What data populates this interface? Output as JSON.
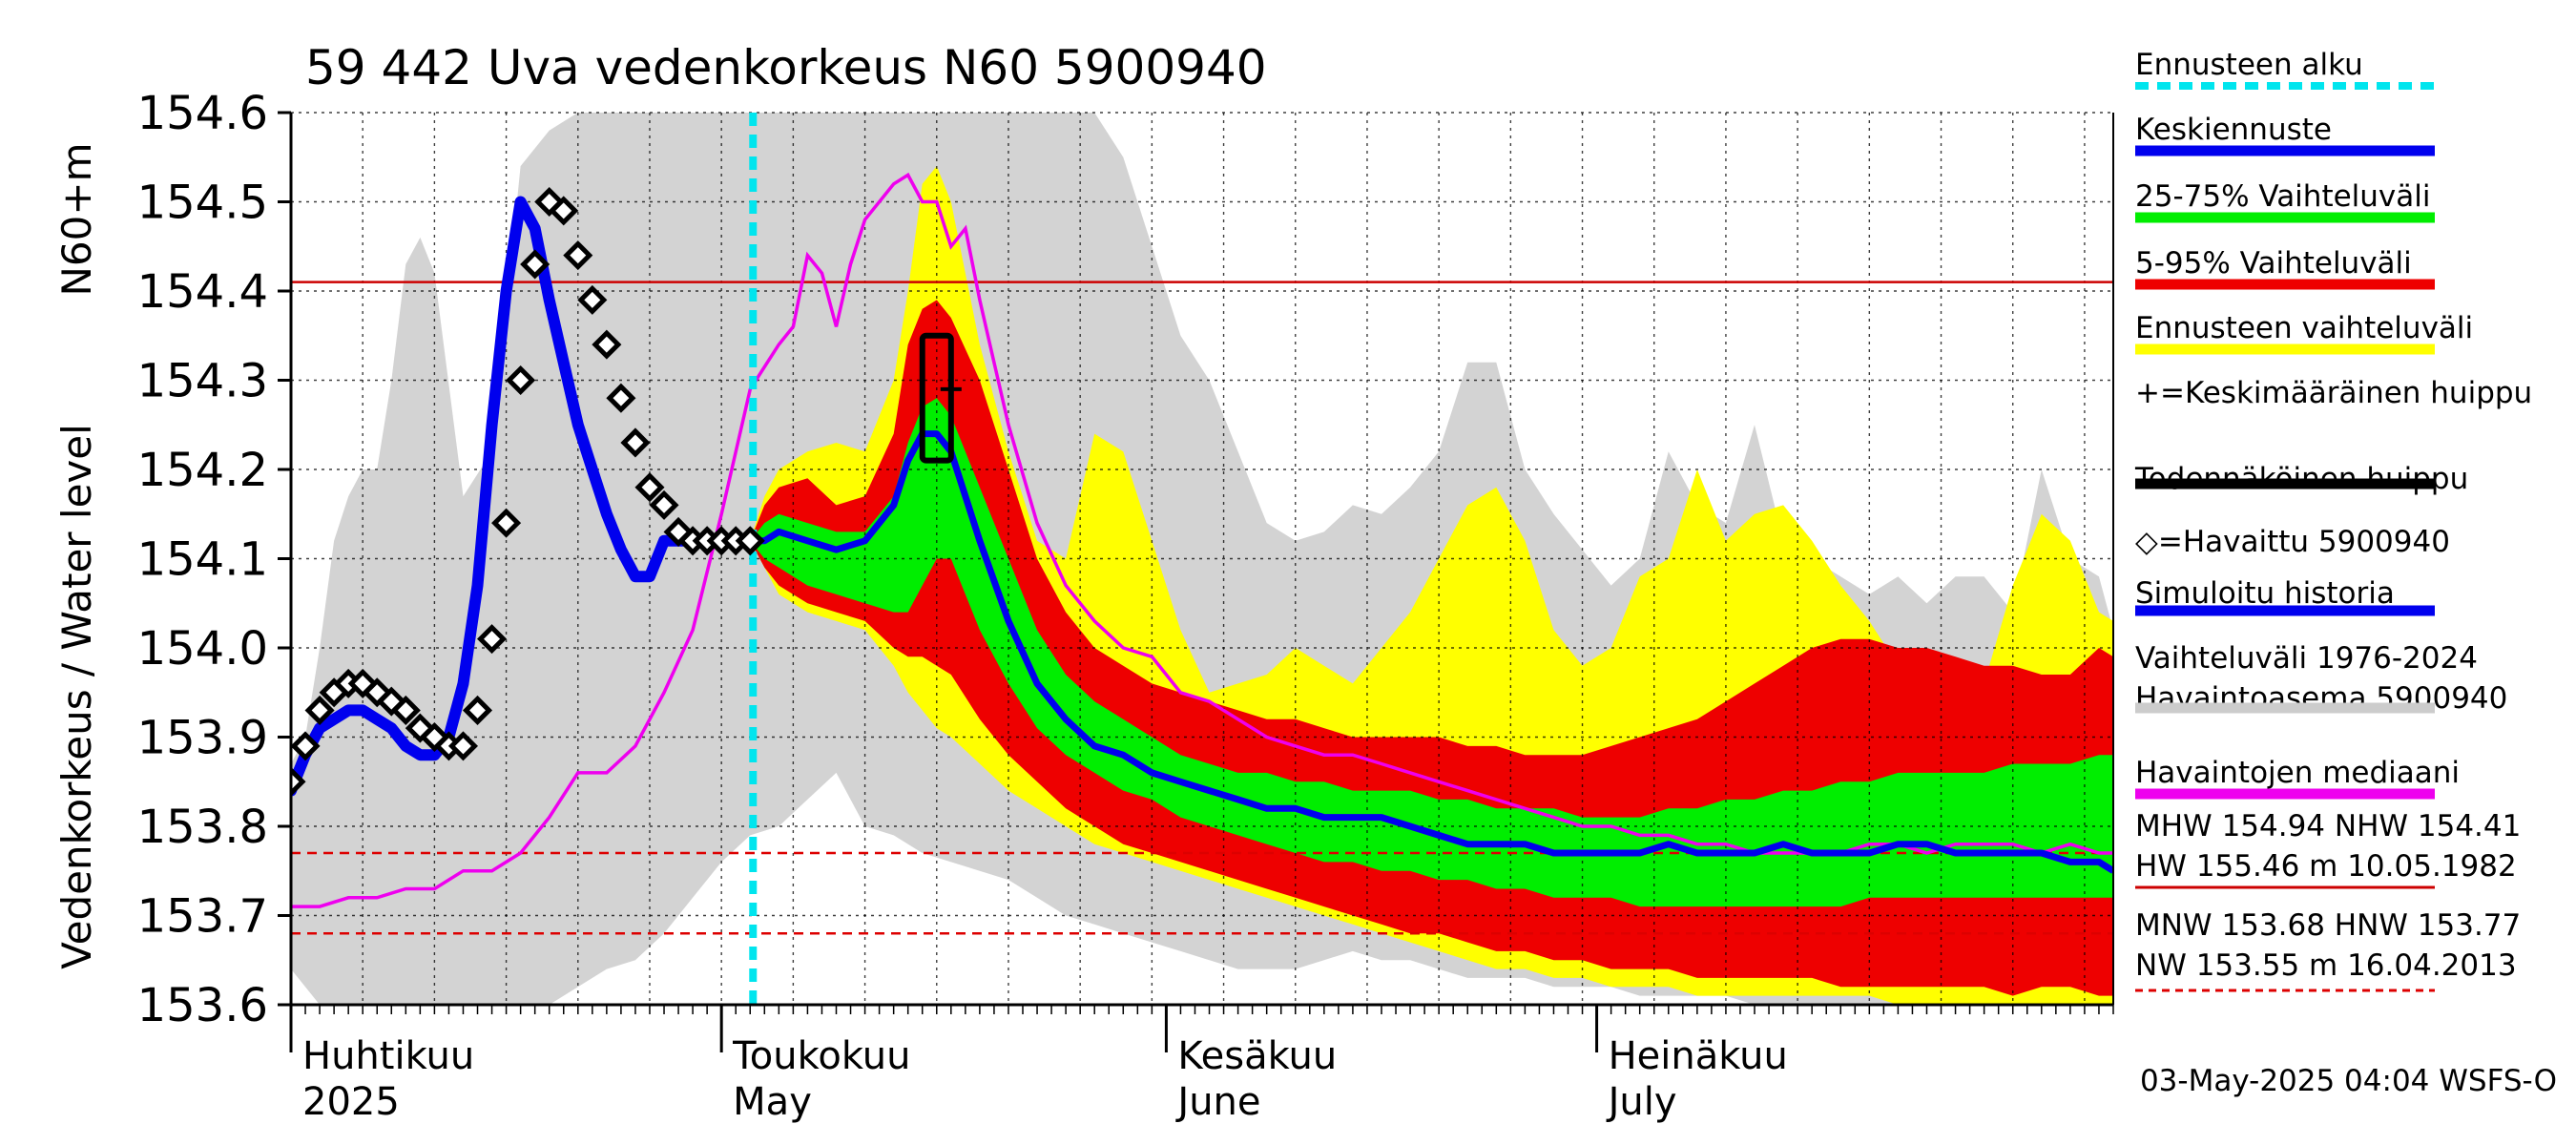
{
  "chart_data": {
    "type": "area",
    "title": "59 442 Uva vedenkorkeus N60 5900940",
    "ylabel_main": "Vedenkorkeus / Water level",
    "ylabel_unit": "N60+m",
    "ylim": [
      153.6,
      154.6
    ],
    "yticks": [
      153.6,
      153.7,
      153.8,
      153.9,
      154.0,
      154.1,
      154.2,
      154.3,
      154.4,
      154.5,
      154.6
    ],
    "xlim_day": [
      0,
      127
    ],
    "month_labels": [
      {
        "day": 0,
        "fi": "Huhtikuu",
        "en": "2025"
      },
      {
        "day": 30,
        "fi": "Toukokuu",
        "en": "May"
      },
      {
        "day": 61,
        "fi": "Kesäkuu",
        "en": "June"
      },
      {
        "day": 91,
        "fi": "Heinäkuu",
        "en": "July"
      }
    ],
    "forecast_start_day": 32.2,
    "hlines": [
      {
        "y": 154.41,
        "color": "#cc0000",
        "style": "solid"
      },
      {
        "y": 153.77,
        "color": "#dd0000",
        "style": "dashed"
      },
      {
        "y": 153.68,
        "color": "#dd0000",
        "style": "dashed"
      }
    ],
    "footer": "03-May-2025 04:04 WSFS-O",
    "legend": [
      {
        "label": "Ennusteen alku",
        "color": "#00e5ee",
        "style": "dashed"
      },
      {
        "label": "Keskiennuste",
        "color": "#0000ee",
        "style": "solid"
      },
      {
        "label": "25-75% Vaihteluväli",
        "color": "#00ee00",
        "style": "solid"
      },
      {
        "label": "5-95% Vaihteluväli",
        "color": "#ee0000",
        "style": "solid"
      },
      {
        "label": "Ennusteen vaihteluväli",
        "color": "#ffff00",
        "style": "solid"
      },
      {
        "label": "+=Keskimääräinen huippu",
        "color": "#000000",
        "style": "none"
      },
      {
        "label": "Todennäköinen huippu",
        "color": "#000000",
        "style": "solid"
      },
      {
        "label": "◇=Havaittu 5900940",
        "color": "#000000",
        "style": "none"
      },
      {
        "label": "Simuloitu historia",
        "color": "#0000ee",
        "style": "solid"
      },
      {
        "label": "Vaihteluväli 1976-2024\n Havaintoasema 5900940",
        "color": "#cccccc",
        "style": "solid"
      },
      {
        "label": "Havaintojen mediaani",
        "color": "#ee00ee",
        "style": "solid"
      },
      {
        "label": "MHW 154.94 NHW 154.41\nHW 155.46 m 10.05.1982",
        "color": "#cc0000",
        "style": "solid"
      },
      {
        "label": "MNW 153.68 HNW 153.77\nNW 153.55 m 16.04.2013",
        "color": "#dd0000",
        "style": "dashed"
      }
    ],
    "historical_range": {
      "x": [
        0,
        1,
        2,
        3,
        4,
        5,
        6,
        7,
        8,
        9,
        10,
        12,
        14,
        16,
        18,
        20,
        22,
        24,
        26,
        28,
        30,
        32,
        34,
        36,
        38,
        40,
        42,
        44,
        46,
        48,
        50,
        52,
        54,
        56,
        58,
        60,
        62,
        64,
        66,
        68,
        70,
        72,
        74,
        76,
        78,
        80,
        82,
        84,
        86,
        88,
        90,
        92,
        94,
        96,
        98,
        100,
        102,
        104,
        106,
        108,
        110,
        112,
        114,
        116,
        118,
        120,
        122,
        124,
        126,
        127
      ],
      "upper": [
        153.87,
        153.9,
        154.0,
        154.12,
        154.17,
        154.2,
        154.2,
        154.3,
        154.43,
        154.46,
        154.42,
        154.17,
        154.22,
        154.54,
        154.58,
        154.6,
        154.6,
        154.6,
        154.6,
        154.6,
        154.6,
        154.6,
        154.6,
        154.6,
        154.6,
        154.6,
        154.6,
        154.6,
        154.6,
        154.6,
        154.6,
        154.6,
        154.6,
        154.6,
        154.55,
        154.45,
        154.35,
        154.3,
        154.22,
        154.14,
        154.12,
        154.13,
        154.16,
        154.15,
        154.18,
        154.22,
        154.32,
        154.32,
        154.2,
        154.15,
        154.11,
        154.07,
        154.1,
        154.22,
        154.16,
        154.14,
        154.25,
        154.12,
        154.1,
        154.08,
        154.06,
        154.08,
        154.05,
        154.08,
        154.08,
        154.04,
        154.2,
        154.1,
        154.08,
        154.02
      ],
      "lower": [
        153.64,
        153.62,
        153.6,
        153.6,
        153.6,
        153.6,
        153.6,
        153.6,
        153.6,
        153.6,
        153.6,
        153.6,
        153.6,
        153.6,
        153.6,
        153.62,
        153.64,
        153.65,
        153.68,
        153.72,
        153.76,
        153.79,
        153.8,
        153.83,
        153.86,
        153.8,
        153.79,
        153.77,
        153.76,
        153.75,
        153.74,
        153.72,
        153.7,
        153.69,
        153.68,
        153.67,
        153.66,
        153.65,
        153.64,
        153.64,
        153.64,
        153.65,
        153.66,
        153.65,
        153.65,
        153.64,
        153.63,
        153.63,
        153.63,
        153.62,
        153.62,
        153.62,
        153.61,
        153.61,
        153.61,
        153.61,
        153.6,
        153.6,
        153.6,
        153.6,
        153.6,
        153.6,
        153.6,
        153.6,
        153.6,
        153.6,
        153.6,
        153.6,
        153.6,
        153.6
      ]
    },
    "forecast_bands": {
      "x": [
        32,
        33,
        34,
        36,
        38,
        40,
        42,
        43,
        44,
        45,
        46,
        48,
        50,
        52,
        54,
        56,
        58,
        60,
        62,
        64,
        66,
        68,
        70,
        72,
        74,
        76,
        78,
        80,
        82,
        84,
        86,
        88,
        90,
        92,
        94,
        96,
        98,
        100,
        102,
        104,
        106,
        108,
        110,
        112,
        114,
        116,
        118,
        120,
        122,
        124,
        126,
        127
      ],
      "yellow_upper": [
        154.12,
        154.17,
        154.2,
        154.22,
        154.23,
        154.22,
        154.3,
        154.4,
        154.52,
        154.54,
        154.5,
        154.34,
        154.22,
        154.12,
        154.1,
        154.24,
        154.22,
        154.12,
        154.02,
        153.95,
        153.96,
        153.97,
        154.0,
        153.98,
        153.96,
        154.0,
        154.04,
        154.1,
        154.16,
        154.18,
        154.12,
        154.02,
        153.98,
        154.0,
        154.08,
        154.1,
        154.2,
        154.12,
        154.15,
        154.16,
        154.12,
        154.07,
        154.03,
        153.98,
        153.95,
        153.98,
        153.96,
        154.07,
        154.15,
        154.12,
        154.04,
        154.03
      ],
      "red_upper": [
        154.12,
        154.16,
        154.18,
        154.19,
        154.16,
        154.17,
        154.24,
        154.34,
        154.38,
        154.39,
        154.37,
        154.3,
        154.2,
        154.1,
        154.04,
        154.0,
        153.98,
        153.96,
        153.95,
        153.94,
        153.93,
        153.92,
        153.92,
        153.91,
        153.9,
        153.9,
        153.9,
        153.9,
        153.89,
        153.89,
        153.88,
        153.88,
        153.88,
        153.89,
        153.9,
        153.91,
        153.92,
        153.94,
        153.96,
        153.98,
        154.0,
        154.01,
        154.01,
        154.0,
        154.0,
        153.99,
        153.98,
        153.98,
        153.97,
        153.97,
        154.0,
        153.99
      ],
      "green_upper": [
        154.12,
        154.14,
        154.15,
        154.14,
        154.13,
        154.13,
        154.17,
        154.23,
        154.27,
        154.28,
        154.26,
        154.18,
        154.1,
        154.02,
        153.97,
        153.94,
        153.92,
        153.9,
        153.88,
        153.87,
        153.86,
        153.86,
        153.85,
        153.85,
        153.84,
        153.84,
        153.84,
        153.83,
        153.83,
        153.82,
        153.82,
        153.82,
        153.81,
        153.81,
        153.81,
        153.82,
        153.82,
        153.83,
        153.83,
        153.84,
        153.84,
        153.85,
        153.85,
        153.86,
        153.86,
        153.86,
        153.86,
        153.87,
        153.87,
        153.87,
        153.88,
        153.88
      ],
      "green_lower": [
        154.12,
        154.1,
        154.09,
        154.07,
        154.06,
        154.05,
        154.04,
        154.04,
        154.07,
        154.1,
        154.1,
        154.02,
        153.96,
        153.91,
        153.88,
        153.86,
        153.84,
        153.83,
        153.81,
        153.8,
        153.79,
        153.78,
        153.77,
        153.76,
        153.76,
        153.75,
        153.75,
        153.74,
        153.74,
        153.73,
        153.73,
        153.72,
        153.72,
        153.72,
        153.71,
        153.71,
        153.71,
        153.71,
        153.71,
        153.71,
        153.71,
        153.71,
        153.72,
        153.72,
        153.72,
        153.72,
        153.72,
        153.72,
        153.72,
        153.72,
        153.72,
        153.72
      ],
      "red_lower": [
        154.12,
        154.09,
        154.07,
        154.05,
        154.04,
        154.03,
        154.0,
        153.99,
        153.99,
        153.98,
        153.97,
        153.92,
        153.88,
        153.85,
        153.82,
        153.8,
        153.78,
        153.77,
        153.76,
        153.75,
        153.74,
        153.73,
        153.72,
        153.71,
        153.7,
        153.69,
        153.68,
        153.68,
        153.67,
        153.66,
        153.66,
        153.65,
        153.65,
        153.64,
        153.64,
        153.64,
        153.63,
        153.63,
        153.63,
        153.63,
        153.63,
        153.62,
        153.62,
        153.62,
        153.62,
        153.62,
        153.62,
        153.61,
        153.62,
        153.62,
        153.61,
        153.61
      ],
      "yellow_lower": [
        154.12,
        154.09,
        154.06,
        154.04,
        154.03,
        154.02,
        153.98,
        153.95,
        153.93,
        153.91,
        153.9,
        153.87,
        153.84,
        153.82,
        153.8,
        153.78,
        153.77,
        153.76,
        153.75,
        153.74,
        153.73,
        153.72,
        153.71,
        153.7,
        153.69,
        153.68,
        153.67,
        153.66,
        153.65,
        153.64,
        153.64,
        153.63,
        153.63,
        153.62,
        153.62,
        153.62,
        153.61,
        153.61,
        153.61,
        153.61,
        153.61,
        153.61,
        153.61,
        153.6,
        153.6,
        153.6,
        153.6,
        153.6,
        153.6,
        153.6,
        153.6,
        153.6
      ]
    },
    "mean_forecast": {
      "x": [
        32,
        33,
        34,
        36,
        38,
        40,
        42,
        43,
        44,
        45,
        46,
        48,
        50,
        52,
        54,
        56,
        58,
        60,
        62,
        64,
        66,
        68,
        70,
        72,
        74,
        76,
        78,
        80,
        82,
        84,
        86,
        88,
        90,
        92,
        94,
        96,
        98,
        100,
        102,
        104,
        106,
        108,
        110,
        112,
        114,
        116,
        118,
        120,
        122,
        124,
        126,
        127
      ],
      "y": [
        154.12,
        154.12,
        154.13,
        154.12,
        154.11,
        154.12,
        154.16,
        154.21,
        154.24,
        154.24,
        154.22,
        154.12,
        154.03,
        153.96,
        153.92,
        153.89,
        153.88,
        153.86,
        153.85,
        153.84,
        153.83,
        153.82,
        153.82,
        153.81,
        153.81,
        153.81,
        153.8,
        153.79,
        153.78,
        153.78,
        153.78,
        153.77,
        153.77,
        153.77,
        153.77,
        153.78,
        153.77,
        153.77,
        153.77,
        153.78,
        153.77,
        153.77,
        153.77,
        153.78,
        153.78,
        153.77,
        153.77,
        153.77,
        153.77,
        153.76,
        153.76,
        153.75
      ]
    },
    "simulated_history": {
      "x": [
        0,
        1,
        2,
        3,
        4,
        5,
        6,
        7,
        8,
        9,
        10,
        11,
        12,
        13,
        14,
        15,
        16,
        17,
        18,
        19,
        20,
        21,
        22,
        23,
        24,
        25,
        26,
        27,
        28,
        29,
        30,
        31,
        32
      ],
      "y": [
        153.84,
        153.88,
        153.91,
        153.92,
        153.93,
        153.93,
        153.92,
        153.91,
        153.89,
        153.88,
        153.88,
        153.9,
        153.96,
        154.07,
        154.25,
        154.4,
        154.5,
        154.47,
        154.39,
        154.32,
        154.25,
        154.2,
        154.15,
        154.11,
        154.08,
        154.08,
        154.12,
        154.12,
        154.12,
        154.12,
        154.12,
        154.12,
        154.12
      ]
    },
    "observed": {
      "x": [
        0,
        1,
        2,
        3,
        4,
        5,
        6,
        7,
        8,
        9,
        10,
        11,
        12,
        13,
        14,
        15,
        16,
        17,
        18,
        19,
        20,
        21,
        22,
        23,
        24,
        25,
        26,
        27,
        28,
        29,
        30,
        31,
        32
      ],
      "y": [
        153.85,
        153.89,
        153.93,
        153.95,
        153.96,
        153.96,
        153.95,
        153.94,
        153.93,
        153.91,
        153.9,
        153.89,
        153.89,
        153.93,
        154.01,
        154.14,
        154.3,
        154.43,
        154.5,
        154.49,
        154.44,
        154.39,
        154.34,
        154.28,
        154.23,
        154.18,
        154.16,
        154.13,
        154.12,
        154.12,
        154.12,
        154.12,
        154.12
      ]
    },
    "observed_median": {
      "x": [
        0,
        2,
        4,
        6,
        8,
        10,
        12,
        14,
        16,
        18,
        20,
        22,
        24,
        26,
        28,
        30,
        32,
        34,
        35,
        36,
        37,
        38,
        39,
        40,
        42,
        43,
        44,
        45,
        46,
        47,
        48,
        49,
        50,
        52,
        54,
        56,
        58,
        60,
        62,
        64,
        66,
        68,
        70,
        72,
        74,
        76,
        78,
        80,
        82,
        84,
        86,
        88,
        90,
        92,
        94,
        96,
        98,
        100,
        102,
        104,
        106,
        108,
        110,
        112,
        114,
        116,
        118,
        120,
        122,
        124,
        126,
        127
      ],
      "y": [
        153.71,
        153.71,
        153.72,
        153.72,
        153.73,
        153.73,
        153.75,
        153.75,
        153.77,
        153.81,
        153.86,
        153.86,
        153.89,
        153.95,
        154.02,
        154.15,
        154.29,
        154.34,
        154.36,
        154.44,
        154.42,
        154.36,
        154.43,
        154.48,
        154.52,
        154.53,
        154.5,
        154.5,
        154.45,
        154.47,
        154.39,
        154.32,
        154.25,
        154.14,
        154.07,
        154.03,
        154.0,
        153.99,
        153.95,
        153.94,
        153.92,
        153.9,
        153.89,
        153.88,
        153.88,
        153.87,
        153.86,
        153.85,
        153.84,
        153.83,
        153.82,
        153.81,
        153.8,
        153.8,
        153.79,
        153.79,
        153.78,
        153.78,
        153.77,
        153.77,
        153.77,
        153.77,
        153.78,
        153.78,
        153.77,
        153.78,
        153.78,
        153.78,
        153.77,
        153.78,
        153.77,
        153.77
      ]
    },
    "mean_peak": {
      "x": 46,
      "y": 154.29
    },
    "probable_peak_box": {
      "x0": 44,
      "x1": 46,
      "y0": 154.21,
      "y1": 154.35
    }
  }
}
